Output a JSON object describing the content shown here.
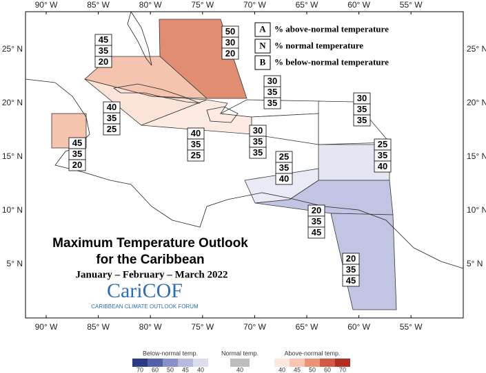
{
  "map": {
    "lon_labels": [
      "90° W",
      "85° W",
      "80° W",
      "75° W",
      "70° W",
      "65° W",
      "60° W",
      "55° W"
    ],
    "lat_labels": [
      "25° N",
      "20° N",
      "15° N",
      "10° N",
      "5° N"
    ]
  },
  "legend_key": [
    {
      "letter": "A",
      "text": "% above-normal temperature"
    },
    {
      "letter": "N",
      "text": "% normal temperature"
    },
    {
      "letter": "B",
      "text": "% below-normal temperature"
    }
  ],
  "regions": [
    {
      "above": 50,
      "normal": 30,
      "below": 20
    },
    {
      "above": 45,
      "normal": 35,
      "below": 20
    },
    {
      "above": 40,
      "normal": 35,
      "below": 25
    },
    {
      "above": 45,
      "normal": 35,
      "below": 20
    },
    {
      "above": 40,
      "normal": 35,
      "below": 25
    },
    {
      "above": 30,
      "normal": 35,
      "below": 35
    },
    {
      "above": 30,
      "normal": 35,
      "below": 35
    },
    {
      "above": 30,
      "normal": 35,
      "below": 35
    },
    {
      "above": 25,
      "normal": 35,
      "below": 40
    },
    {
      "above": 25,
      "normal": 35,
      "below": 40
    },
    {
      "above": 20,
      "normal": 35,
      "below": 45
    },
    {
      "above": 20,
      "normal": 35,
      "below": 45
    }
  ],
  "title": [
    "Maximum Temperature Outlook",
    "for the Caribbean"
  ],
  "subtitle": "January – February – March 2022",
  "logo": {
    "name": "CariCOF",
    "tagline": "CARIBBEAN CLIMATE OUTLOOK FORUM"
  },
  "colorbar": {
    "below": {
      "title": "Below-normal temp.",
      "labels": [
        "70",
        "60",
        "50",
        "45",
        "40"
      ]
    },
    "normal": {
      "title": "Normal temp.",
      "labels": [
        "40"
      ]
    },
    "above": {
      "title": "Above-normal temp.",
      "labels": [
        "40",
        "45",
        "50",
        "60",
        "70"
      ]
    }
  }
}
